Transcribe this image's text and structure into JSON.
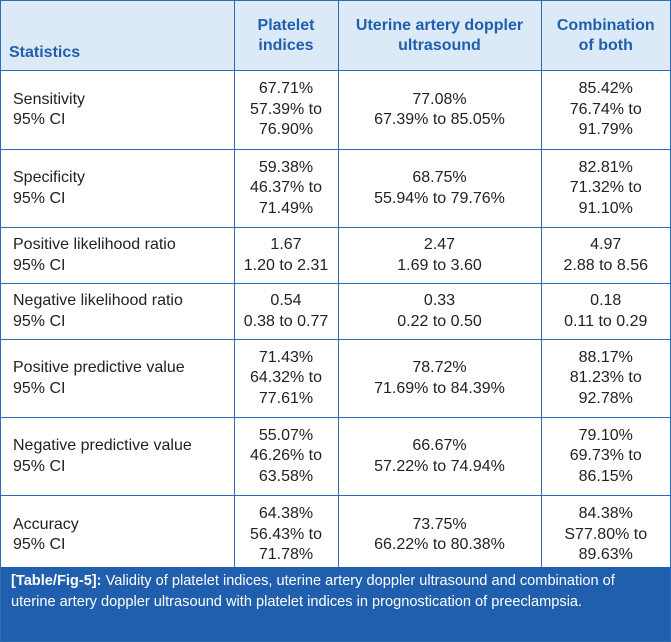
{
  "headers": [
    "Statistics",
    "Platelet indices",
    "Uterine artery doppler ultrasound",
    "Combination of both"
  ],
  "rows": [
    {
      "label": "Sensitivity",
      "sublabel": "95% CI",
      "platelet": [
        "67.71%",
        "57.39% to",
        "76.90%"
      ],
      "doppler": [
        "77.08%",
        "67.39% to 85.05%"
      ],
      "combo": [
        "85.42%",
        "76.74% to",
        "91.79%"
      ]
    },
    {
      "label": "Specificity",
      "sublabel": "95% CI",
      "platelet": [
        "59.38%",
        "46.37% to",
        "71.49%"
      ],
      "doppler": [
        "68.75%",
        "55.94% to 79.76%"
      ],
      "combo": [
        "82.81%",
        "71.32% to",
        "91.10%"
      ]
    },
    {
      "label": "Positive likelihood ratio",
      "sublabel": "95% CI",
      "platelet": [
        "1.67",
        "1.20 to 2.31"
      ],
      "doppler": [
        "2.47",
        "1.69 to 3.60"
      ],
      "combo": [
        "4.97",
        "2.88 to 8.56"
      ]
    },
    {
      "label": "Negative likelihood ratio",
      "sublabel": "95% CI",
      "platelet": [
        "0.54",
        "0.38 to 0.77"
      ],
      "doppler": [
        "0.33",
        "0.22 to 0.50"
      ],
      "combo": [
        "0.18",
        "0.11 to 0.29"
      ]
    },
    {
      "label": "Positive predictive value",
      "sublabel": "95% CI",
      "platelet": [
        "71.43%",
        "64.32% to",
        "77.61%"
      ],
      "doppler": [
        "78.72%",
        "71.69% to 84.39%"
      ],
      "combo": [
        "88.17%",
        "81.23% to",
        "92.78%"
      ]
    },
    {
      "label": "Negative predictive value",
      "sublabel": "95% CI",
      "platelet": [
        "55.07%",
        "46.26% to",
        "63.58%"
      ],
      "doppler": [
        "66.67%",
        "57.22% to 74.94%"
      ],
      "combo": [
        "79.10%",
        "69.73% to",
        "86.15%"
      ]
    },
    {
      "label": "Accuracy",
      "sublabel": "95% CI",
      "platelet": [
        "64.38%",
        "56.43% to",
        "71.78%"
      ],
      "doppler": [
        "73.75%",
        "66.22% to 80.38%"
      ],
      "combo": [
        "84.38%",
        "S77.80% to",
        "89.63%"
      ]
    }
  ],
  "caption": {
    "tag": "[Table/Fig-5]:",
    "text": "Validity of platelet indices, uterine artery doppler ultrasound and combination of uterine artery doppler ultrasound with platelet indices in prognostication of preeclampsia."
  }
}
